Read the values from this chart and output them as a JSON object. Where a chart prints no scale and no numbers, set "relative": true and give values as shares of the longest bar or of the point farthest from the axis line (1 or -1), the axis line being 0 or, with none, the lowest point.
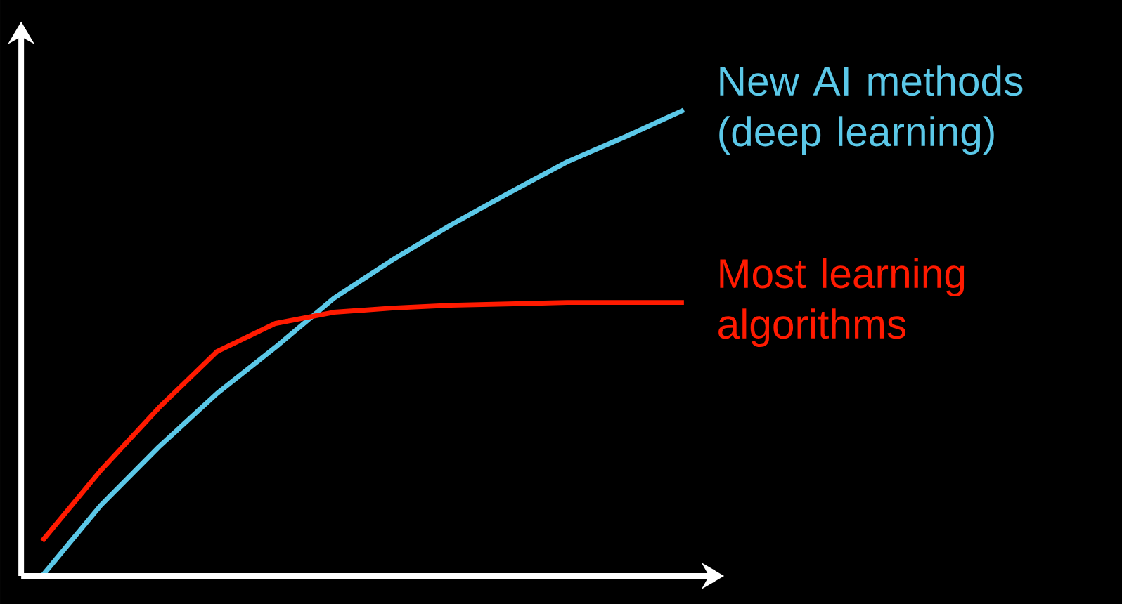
{
  "chart_data": {
    "type": "line",
    "relative": true,
    "categories": [
      null,
      null,
      null,
      null,
      null,
      null,
      null,
      null,
      null,
      null,
      null,
      null
    ],
    "series": [
      {
        "name": "New AI methods (deep learning)",
        "color": "#5bc8e8",
        "values": [
          0,
          0.151,
          0.277,
          0.392,
          0.491,
          0.596,
          0.678,
          0.753,
          0.822,
          0.889,
          0.943,
          1.0
        ]
      },
      {
        "name": "Most learning algorithms",
        "color": "#ff1a00",
        "values": [
          0.075,
          0.226,
          0.361,
          0.482,
          0.542,
          0.566,
          0.575,
          0.581,
          0.584,
          0.587,
          0.587,
          0.587
        ]
      }
    ]
  }
}
